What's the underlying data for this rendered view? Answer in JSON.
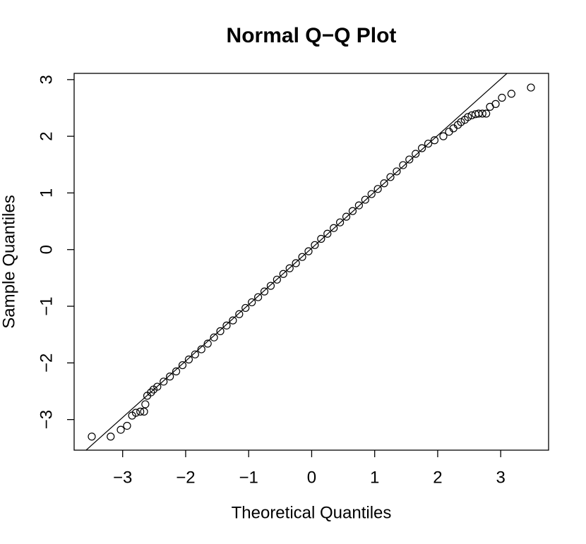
{
  "chart_data": {
    "type": "scatter",
    "title": "Normal Q−Q Plot",
    "x_label": "Theoretical Quantiles",
    "y_label": "Sample Quantiles",
    "x": [
      -3.49,
      -3.19,
      -3.03,
      -2.93,
      -2.85,
      -2.79,
      -2.72,
      -2.66,
      -2.64,
      -2.61,
      -2.55,
      -2.51,
      -2.45,
      -2.35,
      -2.25,
      -2.15,
      -2.05,
      -1.95,
      -1.85,
      -1.75,
      -1.65,
      -1.55,
      -1.45,
      -1.35,
      -1.25,
      -1.15,
      -1.05,
      -0.95,
      -0.85,
      -0.75,
      -0.65,
      -0.55,
      -0.45,
      -0.35,
      -0.25,
      -0.15,
      -0.05,
      0.05,
      0.15,
      0.25,
      0.35,
      0.45,
      0.55,
      0.65,
      0.75,
      0.85,
      0.95,
      1.05,
      1.15,
      1.25,
      1.35,
      1.45,
      1.55,
      1.65,
      1.75,
      1.85,
      1.95,
      2.09,
      2.18,
      2.25,
      2.32,
      2.37,
      2.43,
      2.48,
      2.54,
      2.6,
      2.65,
      2.71,
      2.77,
      2.83,
      2.92,
      3.02,
      3.17,
      3.48
    ],
    "values": [
      -3.3,
      -3.3,
      -3.18,
      -3.11,
      -2.93,
      -2.88,
      -2.86,
      -2.86,
      -2.73,
      -2.58,
      -2.52,
      -2.47,
      -2.42,
      -2.33,
      -2.24,
      -2.15,
      -2.04,
      -1.94,
      -1.85,
      -1.76,
      -1.66,
      -1.55,
      -1.44,
      -1.34,
      -1.25,
      -1.14,
      -1.03,
      -0.93,
      -0.84,
      -0.74,
      -0.64,
      -0.53,
      -0.43,
      -0.33,
      -0.24,
      -0.13,
      -0.03,
      0.08,
      0.19,
      0.28,
      0.38,
      0.48,
      0.58,
      0.68,
      0.78,
      0.88,
      0.98,
      1.07,
      1.17,
      1.28,
      1.38,
      1.49,
      1.59,
      1.69,
      1.79,
      1.87,
      1.93,
      2.0,
      2.08,
      2.14,
      2.2,
      2.25,
      2.29,
      2.34,
      2.37,
      2.39,
      2.4,
      2.4,
      2.4,
      2.52,
      2.57,
      2.68,
      2.75,
      2.86
    ],
    "color": "#000000",
    "reference_line": {
      "x": [
        -3.58,
        3.1
      ],
      "values": [
        -3.54,
        3.11
      ]
    },
    "xlim": [
      -3.77,
      3.76
    ],
    "xticks": [
      {
        "value": -3,
        "label": "−3"
      },
      {
        "value": -2,
        "label": "−2"
      },
      {
        "value": -1,
        "label": "−1"
      },
      0,
      1,
      2,
      3
    ],
    "ylim": [
      -3.54,
      3.11
    ],
    "yticks": [
      {
        "value": -3,
        "label": "−3"
      },
      {
        "value": -2,
        "label": "−2"
      },
      {
        "value": -1,
        "label": "−1"
      },
      0,
      1,
      2,
      3
    ],
    "grid": false
  }
}
